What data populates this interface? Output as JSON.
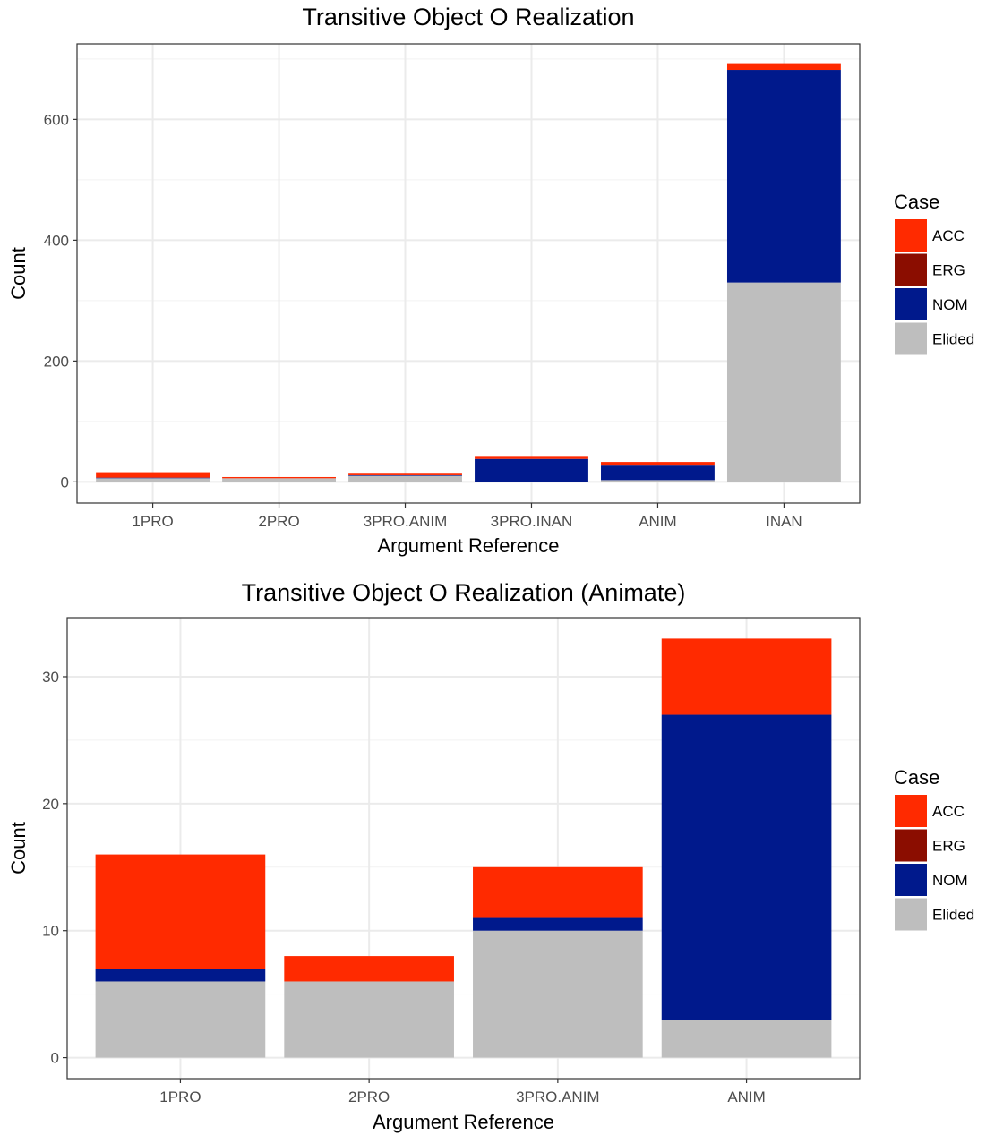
{
  "chart_data": [
    {
      "type": "bar",
      "stacked": true,
      "title": "Transitive Object O Realization",
      "xlabel": "Argument Reference",
      "ylabel": "Count",
      "categories": [
        "1PRO",
        "2PRO",
        "3PRO.ANIM",
        "3PRO.INAN",
        "ANIM",
        "INAN"
      ],
      "ylim": [
        -35,
        725
      ],
      "yticks": [
        0,
        200,
        400,
        600
      ],
      "grid": true,
      "legend": {
        "title": "Case",
        "position": "right",
        "entries": [
          "ACC",
          "ERG",
          "NOM",
          "Elided"
        ]
      },
      "series": [
        {
          "name": "Elided",
          "color": "#bebebe",
          "values": [
            6,
            6,
            10,
            0,
            3,
            330
          ]
        },
        {
          "name": "NOM",
          "color": "#00198c",
          "values": [
            1,
            0,
            1,
            38,
            24,
            352
          ]
        },
        {
          "name": "ERG",
          "color": "#8b0d00",
          "values": [
            0,
            0,
            0,
            0,
            0,
            0
          ]
        },
        {
          "name": "ACC",
          "color": "#ff2a00",
          "values": [
            9,
            2,
            4,
            5,
            6,
            11
          ]
        }
      ]
    },
    {
      "type": "bar",
      "stacked": true,
      "title": "Transitive Object O Realization (Animate)",
      "xlabel": "Argument Reference",
      "ylabel": "Count",
      "categories": [
        "1PRO",
        "2PRO",
        "3PRO.ANIM",
        "ANIM"
      ],
      "ylim": [
        -1.65,
        34.65
      ],
      "yticks": [
        0,
        10,
        20,
        30
      ],
      "grid": true,
      "legend": {
        "title": "Case",
        "position": "right",
        "entries": [
          "ACC",
          "ERG",
          "NOM",
          "Elided"
        ]
      },
      "series": [
        {
          "name": "Elided",
          "color": "#bebebe",
          "values": [
            6,
            6,
            10,
            3
          ]
        },
        {
          "name": "NOM",
          "color": "#00198c",
          "values": [
            1,
            0,
            1,
            24
          ]
        },
        {
          "name": "ERG",
          "color": "#8b0d00",
          "values": [
            0,
            0,
            0,
            0
          ]
        },
        {
          "name": "ACC",
          "color": "#ff2a00",
          "values": [
            9,
            2,
            4,
            6
          ]
        }
      ]
    }
  ]
}
